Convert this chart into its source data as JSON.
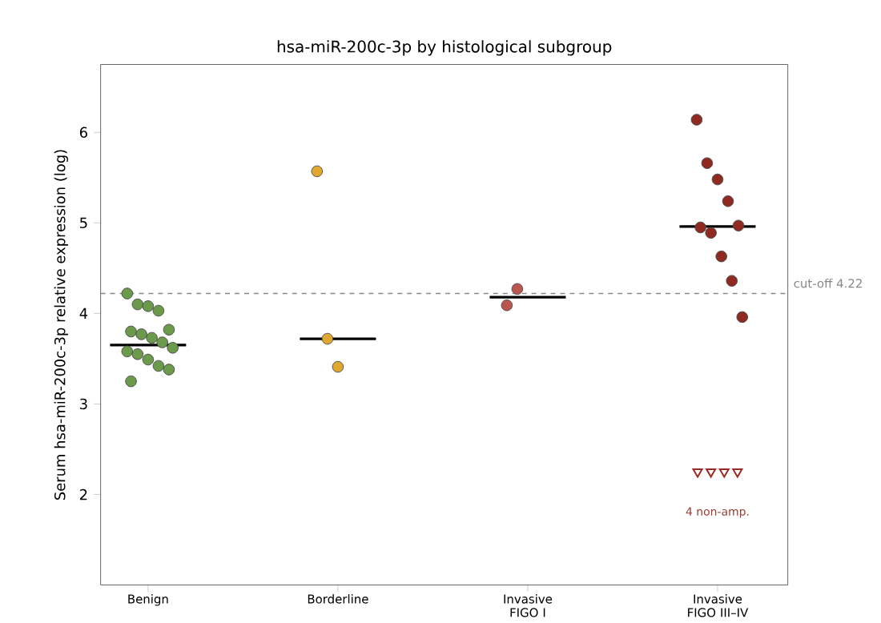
{
  "chart_data": {
    "type": "scatter",
    "title": "hsa-miR-200c-3p by histological subgroup",
    "ylabel": "Serum hsa-miR-200c-3p relative expression (log)",
    "categories": [
      "Benign",
      "Borderline",
      "Invasive FIGO I",
      "Invasive FIGO III–IV"
    ],
    "ylim": [
      1.0,
      6.75
    ],
    "yticks": [
      2,
      3,
      4,
      5,
      6
    ],
    "grid": false,
    "marker": "circle",
    "series": [
      {
        "color": "#6a9a4a",
        "x": [
          "Benign",
          "Benign",
          "Benign",
          "Benign",
          "Benign",
          "Benign",
          "Benign",
          "Benign",
          "Benign",
          "Benign",
          "Benign",
          "Benign",
          "Benign",
          "Benign",
          "Benign",
          "Benign"
        ],
        "values": [
          4.22,
          4.1,
          4.08,
          4.03,
          3.82,
          3.8,
          3.77,
          3.73,
          3.68,
          3.62,
          3.58,
          3.55,
          3.49,
          3.42,
          3.38,
          3.25
        ]
      },
      {
        "color": "#e0a82e",
        "x": [
          "Borderline",
          "Borderline",
          "Borderline"
        ],
        "values": [
          5.57,
          3.72,
          3.41
        ]
      },
      {
        "color": "#bb5550",
        "x": [
          "Invasive FIGO I",
          "Invasive FIGO I"
        ],
        "values": [
          4.09,
          4.27
        ]
      },
      {
        "color": "#8e2a22",
        "x": [
          "Invasive FIGO III–IV",
          "Invasive FIGO III–IV",
          "Invasive FIGO III–IV",
          "Invasive FIGO III–IV",
          "Invasive FIGO III–IV",
          "Invasive FIGO III–IV",
          "Invasive FIGO III–IV",
          "Invasive FIGO III–IV",
          "Invasive FIGO III–IV",
          "Invasive FIGO III–IV"
        ],
        "values": [
          6.14,
          5.66,
          5.48,
          5.24,
          4.97,
          4.95,
          4.89,
          4.63,
          4.36,
          3.96
        ]
      },
      {
        "color": "#9b2a22",
        "marker": "triangle",
        "x": [
          "Invasive FIGO III–IV",
          "Invasive FIGO III–IV",
          "Invasive FIGO III–IV",
          "Invasive FIGO III–IV"
        ],
        "values": [
          2.25,
          2.25,
          2.25,
          2.25
        ]
      },
      {
        "type": "box",
        "color": "#000000",
        "boxes": [
          {
            "low": 3.65,
            "q1": 3.65,
            "median": 3.65,
            "q3": 3.65,
            "high": 3.65
          },
          {
            "low": 3.72,
            "q1": 3.72,
            "median": 3.72,
            "q3": 3.72,
            "high": 3.72
          },
          {
            "low": 4.18,
            "q1": 4.18,
            "median": 4.18,
            "q3": 4.18,
            "high": 4.18
          },
          {
            "low": 4.96,
            "q1": 4.96,
            "median": 4.96,
            "q3": 4.96,
            "high": 4.96
          }
        ]
      }
    ],
    "ref_lines": [
      {
        "axis": "y",
        "value": 4.22,
        "label": "cut-off 4.22",
        "color": "#888888",
        "line_style": "dashed"
      }
    ],
    "annotations": [
      "4 non-amp."
    ]
  }
}
